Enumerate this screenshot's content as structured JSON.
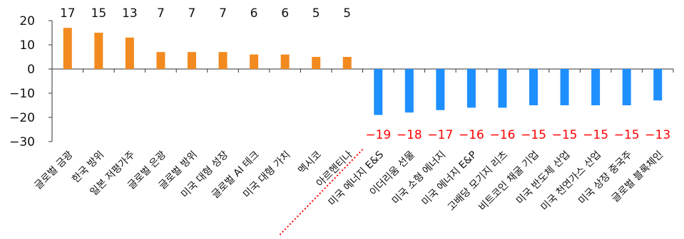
{
  "chart_data": {
    "type": "bar",
    "title": "",
    "xlabel": "",
    "ylabel": "",
    "ylim": [
      -30,
      20
    ],
    "yticks": [
      20,
      10,
      0,
      -10,
      -20,
      -30
    ],
    "grid": false,
    "legend": "none",
    "categories": [
      "글로벌 금광",
      "한국 방위",
      "일본 저평가주",
      "글로벌 은광",
      "글로벌 방위",
      "미국 대형 성장",
      "글로벌 AI 테크",
      "미국 대형 가치",
      "멕시코",
      "아르헨티나",
      "미국 에너지 E&S",
      "이더리움 선물",
      "미국 소형 에너지",
      "미국 에너지 E&P",
      "고배당 모기지 리츠",
      "비트코인 채굴 기업",
      "미국 반도체 산업",
      "미국 천연가스 산업",
      "미국 상장 중국주",
      "글로벌 블록체인"
    ],
    "values": [
      17,
      15,
      13,
      7,
      7,
      7,
      6,
      6,
      5,
      5,
      -19,
      -18,
      -17,
      -16,
      -16,
      -15,
      -15,
      -15,
      -15,
      -13
    ],
    "data_labels": [
      "17",
      "15",
      "13",
      "7",
      "7",
      "7",
      "6",
      "6",
      "5",
      "5",
      "−19",
      "−18",
      "−17",
      "−16",
      "−16",
      "−15",
      "−15",
      "−15",
      "−15",
      "−13"
    ],
    "colors": {
      "positive": "#F28A20",
      "negative": "#1E8FFF",
      "positive_label": "#111111",
      "negative_label": "#FF0000",
      "negative_tick": "#FF0000",
      "divider": "#FF0000",
      "axis": "#333333"
    }
  }
}
